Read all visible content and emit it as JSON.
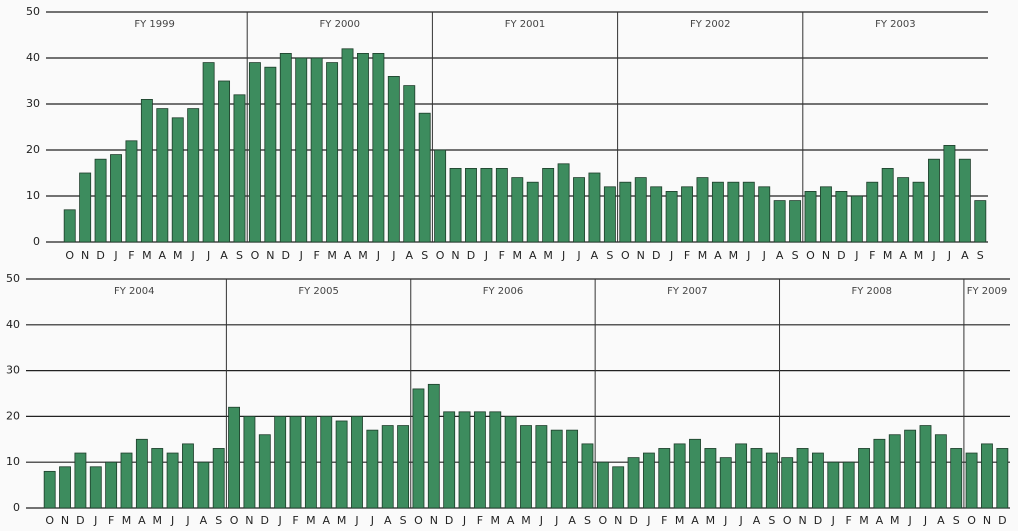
{
  "chart_data": [
    {
      "type": "bar",
      "color": "#3d8c5e",
      "ylim": [
        0,
        50
      ],
      "yticks": [
        0,
        10,
        20,
        30,
        40,
        50
      ],
      "grid": true,
      "periods": [
        "FY 1999",
        "FY 2000",
        "FY 2001",
        "FY 2002",
        "FY 2003"
      ],
      "categories": [
        "O",
        "N",
        "D",
        "J",
        "F",
        "M",
        "A",
        "M",
        "J",
        "J",
        "A",
        "S",
        "O",
        "N",
        "D",
        "J",
        "F",
        "M",
        "A",
        "M",
        "J",
        "J",
        "A",
        "S",
        "O",
        "N",
        "D",
        "J",
        "F",
        "M",
        "A",
        "M",
        "J",
        "J",
        "A",
        "S",
        "O",
        "N",
        "D",
        "J",
        "F",
        "M",
        "A",
        "M",
        "J",
        "J",
        "A",
        "S",
        "O",
        "N",
        "D",
        "J",
        "F",
        "M",
        "A",
        "M",
        "J",
        "J",
        "A",
        "S"
      ],
      "values": [
        7,
        15,
        18,
        19,
        22,
        31,
        29,
        27,
        29,
        39,
        35,
        32,
        39,
        38,
        41,
        40,
        40,
        39,
        42,
        41,
        41,
        36,
        34,
        28,
        20,
        16,
        16,
        16,
        16,
        14,
        13,
        16,
        17,
        14,
        15,
        12,
        13,
        14,
        12,
        11,
        12,
        14,
        13,
        13,
        13,
        12,
        9,
        9,
        11,
        12,
        11,
        10,
        13,
        16,
        14,
        13,
        18,
        21,
        18,
        9
      ]
    },
    {
      "type": "bar",
      "color": "#3d8c5e",
      "ylim": [
        0,
        50
      ],
      "yticks": [
        0,
        10,
        20,
        30,
        40,
        50
      ],
      "grid": true,
      "periods": [
        "FY 2004",
        "FY 2005",
        "FY 2006",
        "FY 2007",
        "FY 2008",
        "FY 2009"
      ],
      "categories": [
        "O",
        "N",
        "D",
        "J",
        "F",
        "M",
        "A",
        "M",
        "J",
        "J",
        "A",
        "S",
        "O",
        "N",
        "D",
        "J",
        "F",
        "M",
        "A",
        "M",
        "J",
        "J",
        "A",
        "S",
        "O",
        "N",
        "D",
        "J",
        "F",
        "M",
        "A",
        "M",
        "J",
        "J",
        "A",
        "S",
        "O",
        "N",
        "D",
        "J",
        "F",
        "M",
        "A",
        "M",
        "J",
        "J",
        "A",
        "S",
        "O",
        "N",
        "D",
        "J",
        "F",
        "M",
        "A",
        "M",
        "J",
        "J",
        "A",
        "S",
        "O",
        "N",
        "D"
      ],
      "values": [
        8,
        9,
        12,
        9,
        10,
        12,
        15,
        13,
        12,
        14,
        10,
        13,
        22,
        20,
        16,
        20,
        20,
        20,
        20,
        19,
        20,
        17,
        18,
        18,
        26,
        27,
        21,
        21,
        21,
        21,
        20,
        18,
        18,
        17,
        17,
        14,
        10,
        9,
        11,
        12,
        13,
        14,
        15,
        13,
        11,
        14,
        13,
        12,
        11,
        13,
        12,
        10,
        10,
        13,
        15,
        16,
        17,
        18,
        16,
        13,
        12,
        14,
        13
      ]
    }
  ]
}
